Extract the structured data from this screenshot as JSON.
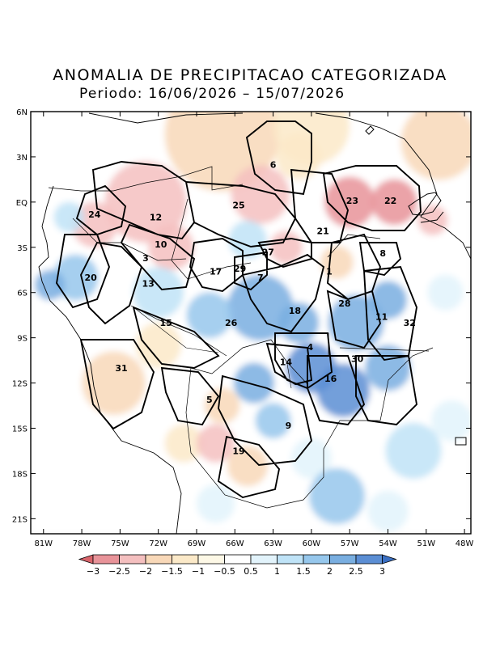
{
  "title": "ANOMALIA DE PRECIPITACAO CATEGORIZADA",
  "subtitle": "Periodo: 16/06/2026 – 15/07/2026",
  "axes": {
    "lat_ticks": [
      "6N",
      "3N",
      "EQ",
      "3S",
      "6S",
      "9S",
      "12S",
      "15S",
      "18S",
      "21S"
    ],
    "lon_ticks": [
      "81W",
      "78W",
      "75W",
      "72W",
      "69W",
      "66W",
      "63W",
      "60W",
      "57W",
      "54W",
      "51W",
      "48W"
    ],
    "lat_range": [
      -22.0,
      6.0
    ],
    "lon_range": [
      -82.0,
      -47.5
    ]
  },
  "colorbar": {
    "labels": [
      "−3",
      "−2.5",
      "−2",
      "−1.5",
      "−1",
      "−0.5",
      "0.5",
      "1",
      "1.5",
      "2",
      "2.5",
      "3"
    ],
    "colors": [
      "#d9646b",
      "#e89399",
      "#f4bfbf",
      "#f8d8b8",
      "#fbe9c8",
      "#fdf8e6",
      "#ffffff",
      "#e2f3fb",
      "#bfe3f7",
      "#96c7ec",
      "#79aee0",
      "#5b8ed4",
      "#3a6fc2"
    ]
  },
  "regions": [
    {
      "id": "1",
      "lon": -58.6,
      "lat": -4.6
    },
    {
      "id": "3",
      "lon": -73.0,
      "lat": -3.7
    },
    {
      "id": "4",
      "lon": -60.1,
      "lat": -9.6
    },
    {
      "id": "5",
      "lon": -68.0,
      "lat": -13.1
    },
    {
      "id": "6",
      "lon": -63.0,
      "lat": 2.5
    },
    {
      "id": "7",
      "lon": -64.0,
      "lat": -5.0
    },
    {
      "id": "8",
      "lon": -54.4,
      "lat": -3.4
    },
    {
      "id": "9",
      "lon": -61.8,
      "lat": -14.8
    },
    {
      "id": "10",
      "lon": -71.8,
      "lat": -2.8
    },
    {
      "id": "11",
      "lon": -54.5,
      "lat": -7.6
    },
    {
      "id": "12",
      "lon": -72.2,
      "lat": -1.0
    },
    {
      "id": "13",
      "lon": -72.8,
      "lat": -5.4
    },
    {
      "id": "14",
      "lon": -62.0,
      "lat": -10.6
    },
    {
      "id": "15",
      "lon": -71.4,
      "lat": -8.0
    },
    {
      "id": "16",
      "lon": -58.5,
      "lat": -11.7
    },
    {
      "id": "17",
      "lon": -67.5,
      "lat": -4.6
    },
    {
      "id": "18",
      "lon": -61.3,
      "lat": -7.2
    },
    {
      "id": "19",
      "lon": -65.7,
      "lat": -16.5
    },
    {
      "id": "20",
      "lon": -77.3,
      "lat": -5.0
    },
    {
      "id": "21",
      "lon": -59.1,
      "lat": -1.9
    },
    {
      "id": "22",
      "lon": -53.8,
      "lat": 0.1
    },
    {
      "id": "23",
      "lon": -56.8,
      "lat": 0.1
    },
    {
      "id": "24",
      "lon": -77.0,
      "lat": -0.8
    },
    {
      "id": "25",
      "lon": -65.7,
      "lat": -0.2
    },
    {
      "id": "26",
      "lon": -66.3,
      "lat": -8.0
    },
    {
      "id": "27",
      "lon": -63.4,
      "lat": -3.3
    },
    {
      "id": "28",
      "lon": -57.4,
      "lat": -6.7
    },
    {
      "id": "29",
      "lon": -65.6,
      "lat": -4.4
    },
    {
      "id": "30",
      "lon": -56.4,
      "lat": -10.4
    },
    {
      "id": "31",
      "lon": -74.9,
      "lat": -11.0
    },
    {
      "id": "32",
      "lon": -52.3,
      "lat": -8.0
    }
  ],
  "anomaly_blobs": [
    {
      "lon": -67,
      "lat": 4.5,
      "v": -1.6,
      "r": 4.5
    },
    {
      "lon": -60,
      "lat": 5,
      "v": -1.2,
      "r": 3
    },
    {
      "lon": -50,
      "lat": 4,
      "v": -1.5,
      "r": 3
    },
    {
      "lon": -73,
      "lat": 0,
      "v": -2.2,
      "r": 3.2
    },
    {
      "lon": -77,
      "lat": -1.5,
      "v": -2.0,
      "r": 1.8
    },
    {
      "lon": -64,
      "lat": 0.5,
      "v": -1.9,
      "r": 2.3
    },
    {
      "lon": -61,
      "lat": 3,
      "v": -1.2,
      "r": 1.8
    },
    {
      "lon": -57,
      "lat": 0,
      "v": -2.6,
      "r": 2.0
    },
    {
      "lon": -53.5,
      "lat": 0,
      "v": -2.5,
      "r": 1.8
    },
    {
      "lon": -50.5,
      "lat": -1.2,
      "v": -1.8,
      "r": 1.2
    },
    {
      "lon": -71,
      "lat": -3,
      "v": -1.9,
      "r": 1.8
    },
    {
      "lon": -62,
      "lat": -3,
      "v": -1.8,
      "r": 1.3
    },
    {
      "lon": -58,
      "lat": -4,
      "v": -1.5,
      "r": 1.3
    },
    {
      "lon": -65,
      "lat": -2.5,
      "v": 0.8,
      "r": 1.5
    },
    {
      "lon": -78.5,
      "lat": -5,
      "v": 1.6,
      "r": 1.8
    },
    {
      "lon": -80.5,
      "lat": -5.5,
      "v": 2.0,
      "r": 1.2
    },
    {
      "lon": -79,
      "lat": -1,
      "v": 1.2,
      "r": 1.2
    },
    {
      "lon": -72,
      "lat": -6,
      "v": 0.8,
      "r": 2
    },
    {
      "lon": -64,
      "lat": -7,
      "v": 2.1,
      "r": 2.6
    },
    {
      "lon": -61,
      "lat": -8,
      "v": 1.8,
      "r": 1.6
    },
    {
      "lon": -68,
      "lat": -7.5,
      "v": 1.3,
      "r": 1.8
    },
    {
      "lon": -56.5,
      "lat": -8,
      "v": 2.2,
      "r": 2.2
    },
    {
      "lon": -54,
      "lat": -6.5,
      "v": 1.9,
      "r": 1.5
    },
    {
      "lon": -60,
      "lat": -11,
      "v": 2.5,
      "r": 2.0
    },
    {
      "lon": -57.5,
      "lat": -12.5,
      "v": 2.6,
      "r": 2.1
    },
    {
      "lon": -54,
      "lat": -11,
      "v": 2.2,
      "r": 1.8
    },
    {
      "lon": -64.5,
      "lat": -12,
      "v": 2.0,
      "r": 1.6
    },
    {
      "lon": -63,
      "lat": -14.5,
      "v": 1.6,
      "r": 1.4
    },
    {
      "lon": -67,
      "lat": -13.5,
      "v": -1.4,
      "r": 1.4
    },
    {
      "lon": -72,
      "lat": -9.5,
      "v": -1.2,
      "r": 1.8
    },
    {
      "lon": -75.5,
      "lat": -12,
      "v": -1.6,
      "r": 2.5
    },
    {
      "lon": -70,
      "lat": -16,
      "v": -1.0,
      "r": 1.5
    },
    {
      "lon": -67.5,
      "lat": -16,
      "v": -1.9,
      "r": 1.5
    },
    {
      "lon": -65,
      "lat": -17.5,
      "v": -1.6,
      "r": 1.6
    },
    {
      "lon": -60,
      "lat": -17,
      "v": 0.6,
      "r": 1.6
    },
    {
      "lon": -58,
      "lat": -19.5,
      "v": 1.3,
      "r": 2.2
    },
    {
      "lon": -52,
      "lat": -16.5,
      "v": 1.0,
      "r": 2.2
    },
    {
      "lon": -49,
      "lat": -14.5,
      "v": 0.7,
      "r": 1.6
    },
    {
      "lon": -54,
      "lat": -20.5,
      "v": 0.5,
      "r": 1.6
    },
    {
      "lon": -67.5,
      "lat": -20,
      "v": 0.5,
      "r": 1.5
    },
    {
      "lon": -49.5,
      "lat": -6,
      "v": 0.7,
      "r": 1.4
    }
  ],
  "colors": {
    "ocean": "#f6f6f6",
    "frame": "#000000"
  }
}
